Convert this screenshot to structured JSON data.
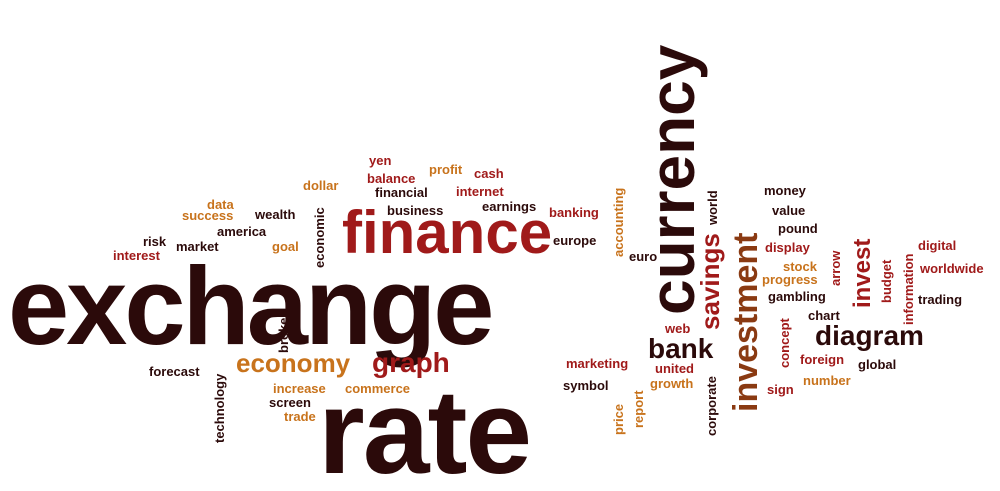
{
  "word_cloud": {
    "big": {
      "exchange": "exchange",
      "rate": "rate",
      "currency": "currency",
      "finance": "finance",
      "investment": "investment"
    },
    "medium": {
      "economy": "economy",
      "graph": "graph",
      "bank": "bank",
      "diagram": "diagram",
      "savings": "savings",
      "invest": "invest"
    },
    "words": {
      "yen": "yen",
      "profit": "profit",
      "cash": "cash",
      "balance": "balance",
      "dollar": "dollar",
      "financial": "financial",
      "internet": "internet",
      "data": "data",
      "business": "business",
      "earnings": "earnings",
      "success": "success",
      "wealth": "wealth",
      "banking": "banking",
      "america": "america",
      "economic": "economic",
      "risk": "risk",
      "market": "market",
      "goal": "goal",
      "interest": "interest",
      "europe": "europe",
      "accounting": "accounting",
      "euro": "euro",
      "world": "world",
      "money": "money",
      "value": "value",
      "pound": "pound",
      "display": "display",
      "arrow": "arrow",
      "stock": "stock",
      "progress": "progress",
      "gambling": "gambling",
      "chart": "chart",
      "digital": "digital",
      "worldwide": "worldwide",
      "information": "information",
      "budget": "budget",
      "trading": "trading",
      "broker": "broker",
      "web": "web",
      "concept": "concept",
      "forecast": "forecast",
      "technology": "technology",
      "marketing": "marketing",
      "united": "united",
      "foreign": "foreign",
      "global": "global",
      "increase": "increase",
      "commerce": "commerce",
      "growth": "growth",
      "number": "number",
      "screen": "screen",
      "symbol": "symbol",
      "sign": "sign",
      "trade": "trade",
      "corporate": "corporate",
      "report": "report",
      "price": "price"
    },
    "colors": {
      "dark": "#2b0a0a",
      "red": "#a01a1a",
      "brown": "#8a3a12",
      "orange": "#c8731c",
      "background": "#ffffff"
    }
  }
}
